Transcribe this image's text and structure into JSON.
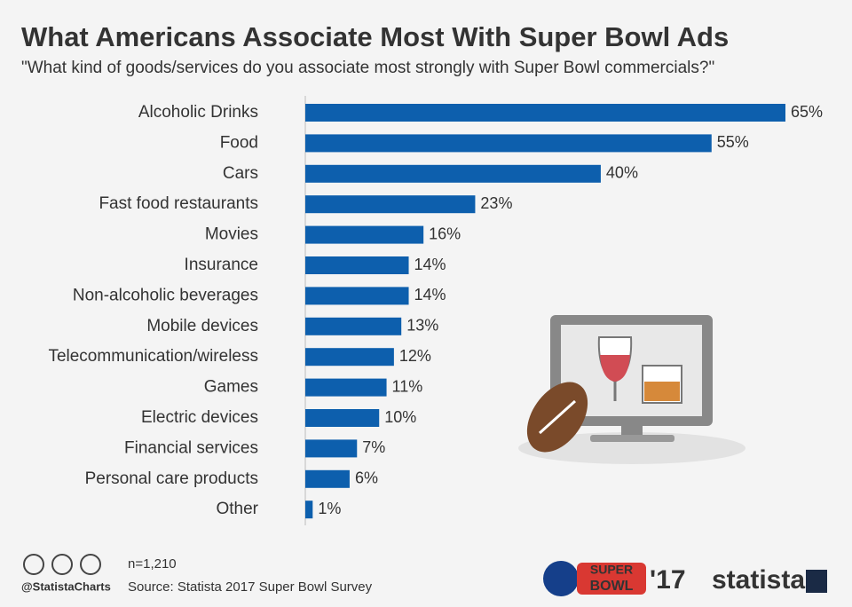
{
  "chart_data": {
    "type": "bar",
    "orientation": "horizontal",
    "title": "What Americans Associate Most With Super Bowl Ads",
    "subtitle": "\"What kind of goods/services do you associate most strongly with Super Bowl commercials?\"",
    "categories": [
      "Alcoholic Drinks",
      "Food",
      "Cars",
      "Fast food restaurants",
      "Movies",
      "Insurance",
      "Non-alcoholic beverages",
      "Mobile devices",
      "Telecommunication/wireless",
      "Games",
      "Electric devices",
      "Financial services",
      "Personal care products",
      "Other"
    ],
    "values": [
      65,
      55,
      40,
      23,
      16,
      14,
      14,
      13,
      12,
      11,
      10,
      7,
      6,
      1
    ],
    "value_labels": [
      "65%",
      "55%",
      "40%",
      "23%",
      "16%",
      "14%",
      "14%",
      "13%",
      "12%",
      "11%",
      "10%",
      "7%",
      "6%",
      "1%"
    ],
    "color": "#0d5fad"
  },
  "footer": {
    "note": "n=1,210",
    "handle": "@StatistaCharts",
    "source": "Source: Statista 2017 Super Bowl Survey",
    "logo_top": "SUPER",
    "logo_bottom": "BOWL",
    "logo_year": "'17",
    "brand": "statista"
  }
}
